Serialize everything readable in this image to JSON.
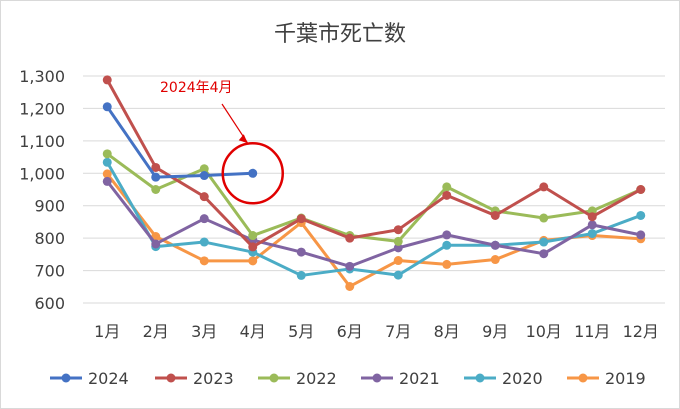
{
  "chart_data": {
    "type": "line",
    "title": "千葉市死亡数",
    "categories": [
      "1月",
      "2月",
      "3月",
      "4月",
      "5月",
      "6月",
      "7月",
      "8月",
      "9月",
      "10月",
      "11月",
      "12月"
    ],
    "ylim": [
      600,
      1300
    ],
    "yticks": [
      600,
      700,
      800,
      900,
      1000,
      1100,
      1200,
      1300
    ],
    "ytick_labels": [
      "600",
      "700",
      "800",
      "900",
      "1,000",
      "1,100",
      "1,200",
      "1,300"
    ],
    "grid": "horizontal",
    "legend_position": "bottom",
    "series": [
      {
        "name": "2024",
        "color": "#4472c4",
        "values": [
          1205,
          988,
          993,
          1000,
          null,
          null,
          null,
          null,
          null,
          null,
          null,
          null
        ]
      },
      {
        "name": "2023",
        "color": "#c0504d",
        "values": [
          1288,
          1018,
          928,
          773,
          860,
          800,
          826,
          932,
          870,
          958,
          866,
          950
        ]
      },
      {
        "name": "2022",
        "color": "#9bbb59",
        "values": [
          1060,
          950,
          1014,
          808,
          862,
          808,
          790,
          958,
          884,
          862,
          884,
          950
        ]
      },
      {
        "name": "2021",
        "color": "#8064a2",
        "values": [
          975,
          782,
          860,
          794,
          757,
          713,
          770,
          810,
          778,
          752,
          841,
          810
        ]
      },
      {
        "name": "2020",
        "color": "#4bacc6",
        "values": [
          1034,
          774,
          788,
          757,
          685,
          705,
          686,
          778,
          778,
          788,
          814,
          870
        ]
      },
      {
        "name": "2019",
        "color": "#f79646",
        "values": [
          998,
          805,
          730,
          730,
          848,
          651,
          731,
          719,
          734,
          793,
          808,
          798
        ]
      }
    ],
    "annotation": {
      "text": "2024年4月",
      "color": "#e00000",
      "target_series": "2024",
      "target_category": "4月"
    }
  }
}
